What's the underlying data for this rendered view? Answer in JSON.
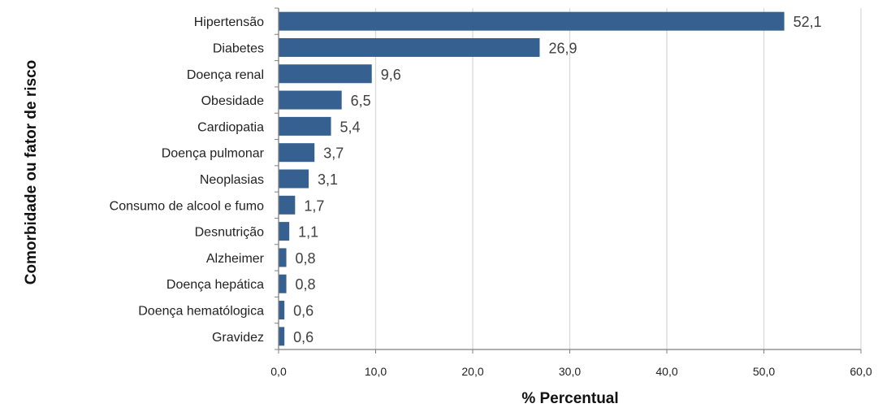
{
  "chart_data": {
    "type": "bar",
    "orientation": "horizontal",
    "title": "",
    "xlabel": "% Percentual",
    "ylabel": "Comorbidade  ou fator de risco",
    "categories": [
      "Hipertensão",
      "Diabetes",
      "Doença renal",
      "Obesidade",
      "Cardiopatia",
      "Doença pulmonar",
      "Neoplasias",
      "Consumo de alcool e fumo",
      "Desnutrição",
      "Alzheimer",
      "Doença hepática",
      "Doença hematólogica",
      "Gravidez"
    ],
    "values": [
      52.1,
      26.9,
      9.6,
      6.5,
      5.4,
      3.7,
      3.1,
      1.7,
      1.1,
      0.8,
      0.8,
      0.6,
      0.6
    ],
    "value_labels": [
      "52,1",
      "26,9",
      "9,6",
      "6,5",
      "5,4",
      "3,7",
      "3,1",
      "1,7",
      "1,1",
      "0,8",
      "0,8",
      "0,6",
      "0,6"
    ],
    "xlim": [
      0,
      60
    ],
    "xticks": [
      0,
      10,
      20,
      30,
      40,
      50,
      60
    ],
    "xtick_labels": [
      "0,0",
      "10,0",
      "20,0",
      "30,0",
      "40,0",
      "50,0",
      "60,0"
    ],
    "grid": true,
    "legend": "none",
    "bar_color": "#35608F",
    "grid_color": "#D9D9D9"
  }
}
